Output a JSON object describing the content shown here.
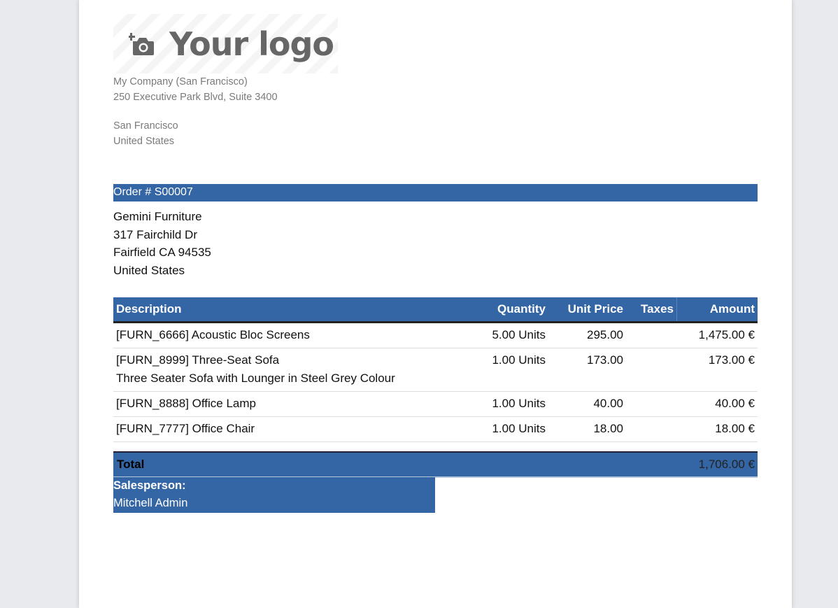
{
  "logo": {
    "text": "Your logo",
    "icon": "camera-plus-icon"
  },
  "company": {
    "name": "My Company (San Francisco)",
    "street": "250 Executive Park Blvd, Suite 3400",
    "city": "San Francisco",
    "country": "United States"
  },
  "order": {
    "title": "Order # S00007"
  },
  "customer": {
    "name": "Gemini Furniture",
    "street": "317 Fairchild Dr",
    "city": "Fairfield CA 94535",
    "country": "United States"
  },
  "table": {
    "headers": {
      "description": "Description",
      "quantity": "Quantity",
      "unit_price": "Unit Price",
      "taxes": "Taxes",
      "amount": "Amount"
    },
    "rows": [
      {
        "description": "[FURN_6666] Acoustic Bloc Screens",
        "note": "",
        "quantity": "5.00 Units",
        "unit_price": "295.00",
        "taxes": "",
        "amount": "1,475.00 €"
      },
      {
        "description": "[FURN_8999] Three-Seat Sofa",
        "note": "Three Seater Sofa with Lounger in Steel Grey Colour",
        "quantity": "1.00 Units",
        "unit_price": "173.00",
        "taxes": "",
        "amount": "173.00 €"
      },
      {
        "description": "[FURN_8888] Office Lamp",
        "note": "",
        "quantity": "1.00 Units",
        "unit_price": "40.00",
        "taxes": "",
        "amount": "40.00 €"
      },
      {
        "description": "[FURN_7777] Office Chair",
        "note": "",
        "quantity": "1.00 Units",
        "unit_price": "18.00",
        "taxes": "",
        "amount": "18.00 €"
      }
    ]
  },
  "total": {
    "label": "Total",
    "value": "1,706.00 €"
  },
  "salesperson": {
    "label": "Salesperson:",
    "name": "Mitchell Admin"
  },
  "colors": {
    "accent": "#3465a4",
    "background": "#e9eaed"
  }
}
